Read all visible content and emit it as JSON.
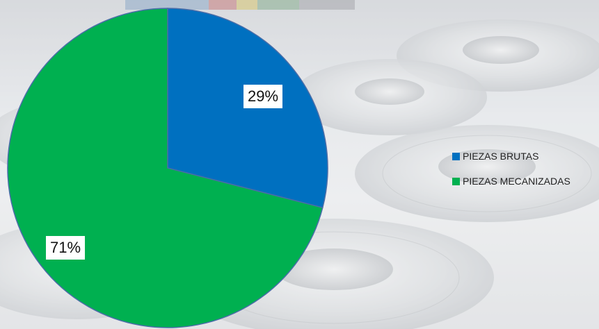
{
  "chart_data": {
    "type": "pie",
    "title": "",
    "legend_position": "right",
    "series": [
      {
        "name": "PIEZAS BRUTAS",
        "value": 29,
        "label": "29%",
        "color": "#0070C0"
      },
      {
        "name": "PIEZAS MECANIZADAS",
        "value": 71,
        "label": "71%",
        "color": "#00B050"
      }
    ]
  }
}
